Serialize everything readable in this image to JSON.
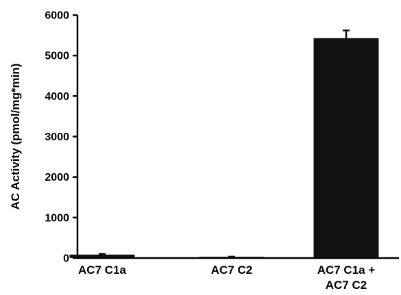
{
  "chart_data": {
    "type": "bar",
    "title": "",
    "xlabel": "",
    "ylabel": "AC Activity (pmol/mg*min)",
    "categories": [
      [
        "AC7 C1a"
      ],
      [
        "AC7 C2"
      ],
      [
        "AC7 C1a +",
        "AC7 C2"
      ]
    ],
    "values": [
      85,
      30,
      5430
    ],
    "errors": [
      15,
      5,
      190
    ],
    "ylim": [
      0,
      6000
    ],
    "yticks": [
      0,
      1000,
      2000,
      3000,
      4000,
      5000,
      6000
    ],
    "grid": false,
    "legend": "none",
    "bar_color": "#111111",
    "axis_color": "#000000"
  }
}
